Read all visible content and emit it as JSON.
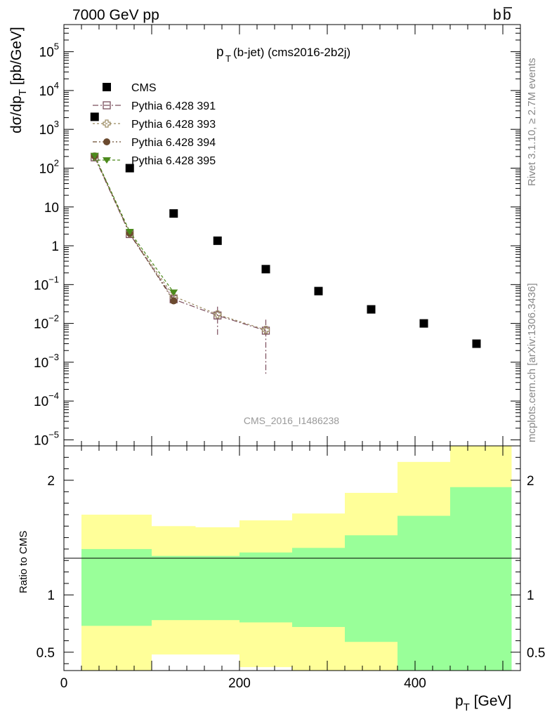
{
  "header": {
    "energy_label": "7000 GeV pp",
    "process_label": "b",
    "process_label_bar": "b"
  },
  "side_labels": {
    "rivet": "Rivet 3.1.10, ≥ 2.7M events",
    "mcplots": "mcplots.cern.ch [arXiv:1306.3436]"
  },
  "watermark": "CMS_2016_I1486238",
  "colors": {
    "cms": "#000000",
    "p391": "#7a4d5c",
    "p393": "#9a8a60",
    "p394": "#6b4a2f",
    "p395": "#4c8a1c",
    "band_outer": "#ffff99",
    "band_inner": "#99ff99"
  },
  "chart_data": [
    {
      "type": "scatter",
      "title_main": "p",
      "title_sub": "T",
      "title_rest": "(b-jet) (cms2016-2b2j)",
      "ylabel_main": "dσ/dp",
      "ylabel_sub": "T",
      "ylabel_rest": " [pb/GeV]",
      "y_scale": "log",
      "xlim": [
        0,
        520
      ],
      "ylim": [
        7e-06,
        500000.0
      ],
      "ytick_labels": {
        "main": [
          "10",
          "10",
          "10",
          "10",
          "10",
          "10",
          "1",
          "10",
          "10",
          "10",
          "10",
          "10"
        ],
        "exp": [
          "5",
          "4",
          "3",
          "2",
          "",
          "",
          "",
          "−1",
          "−2",
          "−3",
          "−4",
          "−5"
        ],
        "vals": [
          100000,
          10000,
          1000,
          100,
          10,
          10,
          1,
          0.1,
          0.01,
          0.001,
          0.0001,
          1e-05
        ]
      },
      "legend_position": "top-left",
      "series": [
        {
          "name": "CMS",
          "marker": "filled-square",
          "x": [
            35,
            75,
            125,
            175,
            230,
            290,
            350,
            410,
            470
          ],
          "y": [
            2100,
            100,
            6.8,
            1.35,
            0.25,
            0.068,
            0.023,
            0.01,
            0.003
          ]
        },
        {
          "name": "Pythia 6.428 391",
          "marker": "open-square",
          "x": [
            35,
            75,
            125,
            175,
            230
          ],
          "y": [
            190,
            2.0,
            0.042,
            0.016,
            0.0065
          ],
          "yerr": [
            null,
            null,
            0.012,
            0.011,
            0.006
          ]
        },
        {
          "name": "Pythia 6.428 393",
          "marker": "open-cross",
          "x": [
            35,
            75,
            125,
            175,
            230
          ],
          "y": [
            200,
            2.1,
            0.05,
            0.017,
            0.0068
          ]
        },
        {
          "name": "Pythia 6.428 394",
          "marker": "filled-circle",
          "x": [
            35,
            75,
            125
          ],
          "y": [
            205,
            2.1,
            0.038
          ]
        },
        {
          "name": "Pythia 6.428 395",
          "marker": "filled-triangle",
          "x": [
            35,
            75,
            125
          ],
          "y": [
            210,
            2.3,
            0.063
          ]
        }
      ]
    },
    {
      "type": "area",
      "ylabel": "Ratio to CMS",
      "xlabel_main": "p",
      "xlabel_sub": "T",
      "xlabel_rest": " [GeV]",
      "xlim": [
        0,
        520
      ],
      "ylim": [
        0.34,
        2.3
      ],
      "xtick_labels": {
        "labels": [
          "0",
          "200",
          "400"
        ],
        "vals": [
          0,
          200,
          400
        ]
      },
      "ytick_labels": {
        "labels": [
          "2",
          "1",
          "0.5"
        ],
        "vals": [
          2,
          1,
          0.5
        ]
      },
      "bins": [
        {
          "lo": 20,
          "hi": 100,
          "inner": [
            0.73,
            1.4
          ],
          "outer": [
            0.3,
            1.7
          ]
        },
        {
          "lo": 100,
          "hi": 150,
          "inner": [
            0.78,
            1.34
          ],
          "outer": [
            0.48,
            1.6
          ]
        },
        {
          "lo": 150,
          "hi": 200,
          "inner": [
            0.78,
            1.34
          ],
          "outer": [
            0.48,
            1.59
          ]
        },
        {
          "lo": 200,
          "hi": 260,
          "inner": [
            0.76,
            1.37
          ],
          "outer": [
            0.37,
            1.65
          ]
        },
        {
          "lo": 260,
          "hi": 320,
          "inner": [
            0.72,
            1.41
          ],
          "outer": [
            0.3,
            1.71
          ]
        },
        {
          "lo": 320,
          "hi": 380,
          "inner": [
            0.59,
            1.52
          ],
          "outer": [
            0.3,
            1.89
          ]
        },
        {
          "lo": 380,
          "hi": 440,
          "inner": [
            0.3,
            1.69
          ],
          "outer": [
            0.3,
            2.16
          ]
        },
        {
          "lo": 440,
          "hi": 510,
          "inner": [
            0.3,
            1.94
          ],
          "outer": [
            0.3,
            2.35
          ]
        }
      ]
    }
  ]
}
